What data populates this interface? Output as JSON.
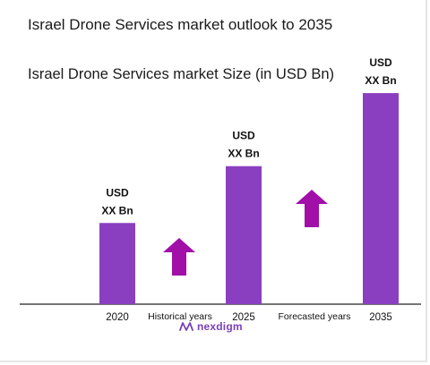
{
  "title": "Israel Drone Services market outlook to 2035",
  "chart_data": {
    "type": "bar",
    "title": "Israel Drone Services market Size (in USD Bn)",
    "categories": [
      "2020",
      "2025",
      "2035"
    ],
    "values": [
      1.0,
      1.7,
      2.6
    ],
    "data_labels": [
      [
        "USD",
        "XX Bn"
      ],
      [
        "USD",
        "XX Bn"
      ],
      [
        "USD",
        "XX Bn"
      ]
    ],
    "period_labels": [
      "Historical years",
      "Forecasted years"
    ],
    "bar_color": "#8a3fc1",
    "arrow_color": "#a10fa8",
    "ylim": [
      0,
      2.7
    ],
    "grid": false,
    "legend": "none"
  },
  "brand": {
    "name": "nexdigm"
  }
}
